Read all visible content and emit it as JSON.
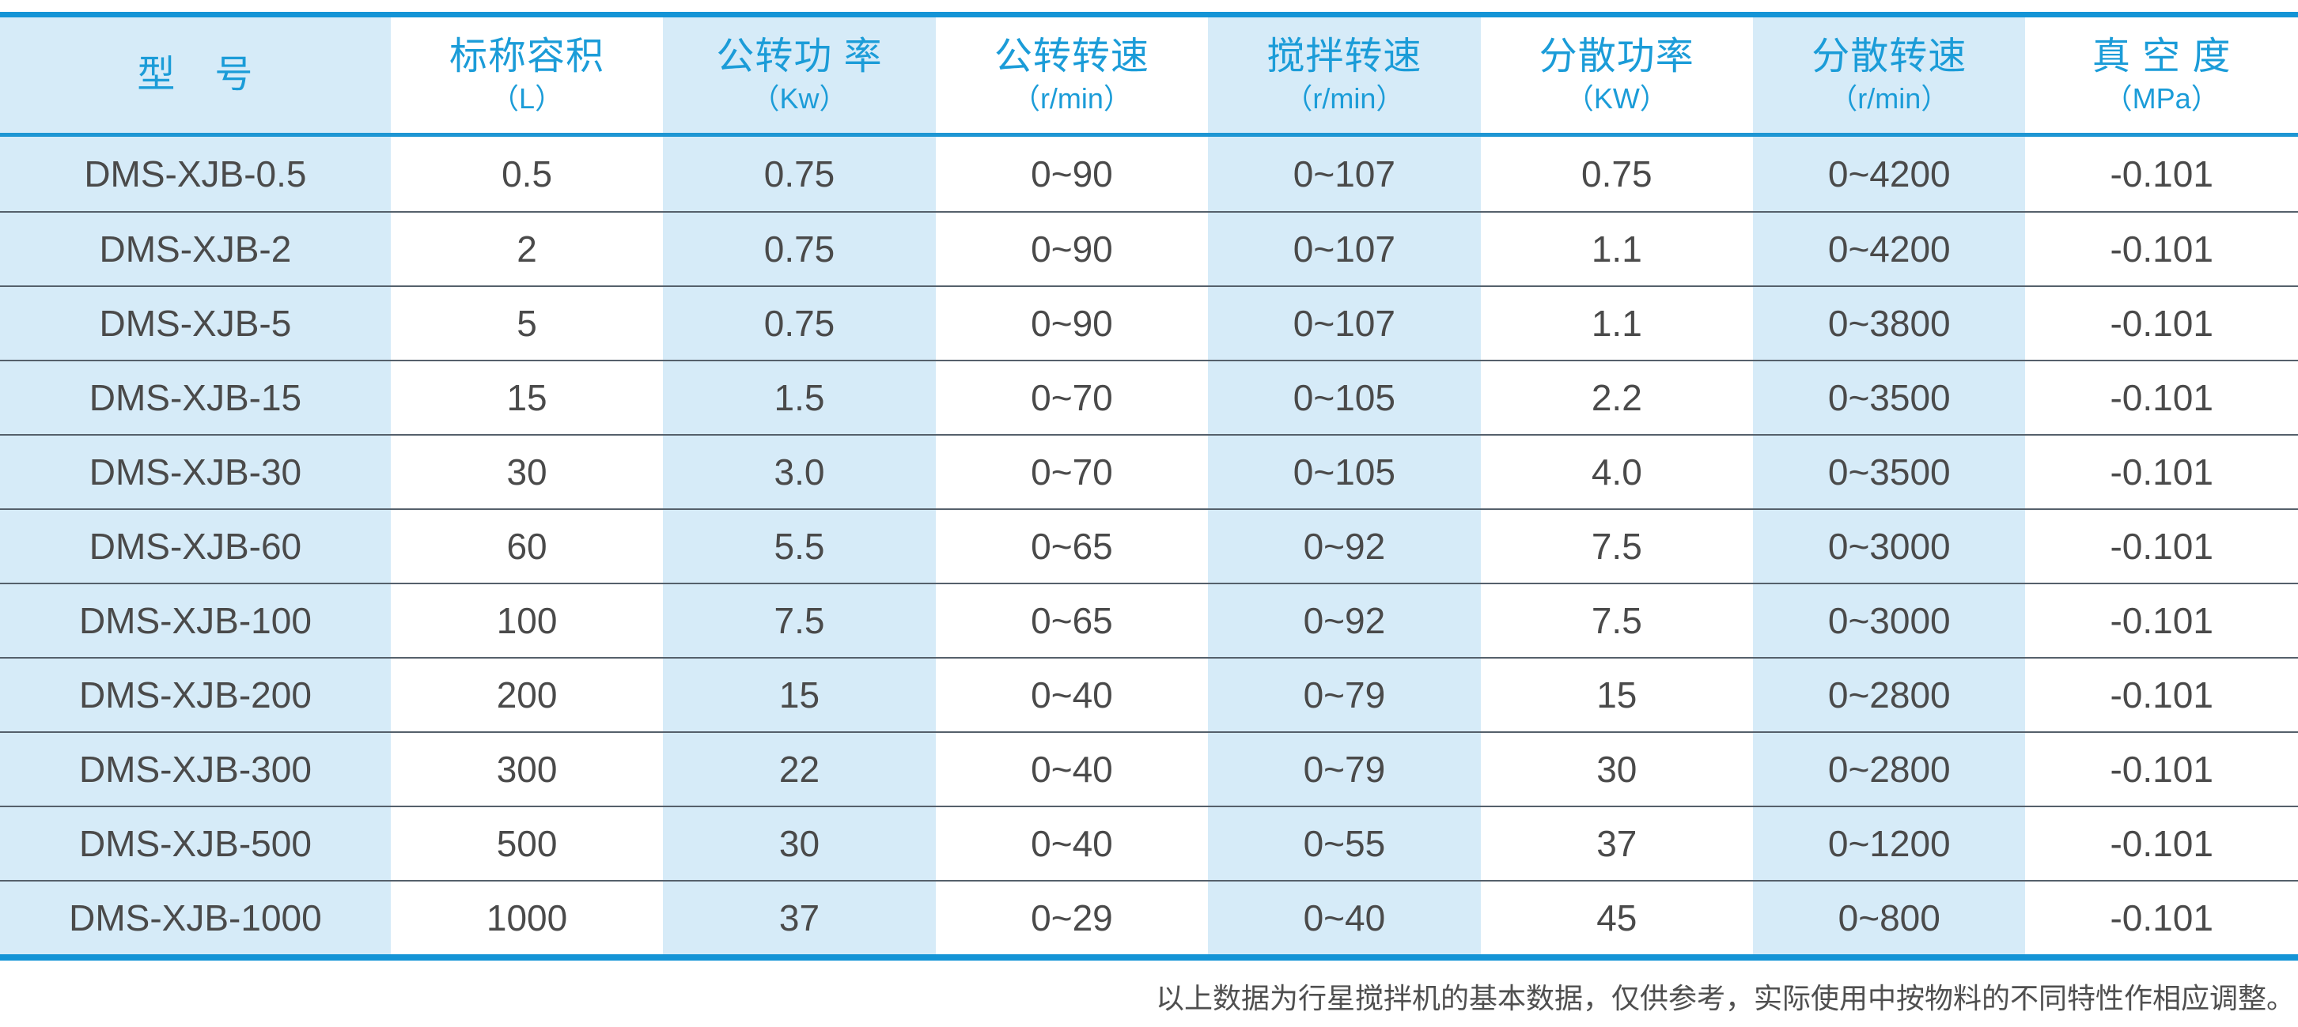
{
  "colors": {
    "accent_blue": "#1494d6",
    "header_text_blue": "#1b9cd8",
    "shaded_column_bg": "#d6ebf8",
    "body_text": "#4a4a4a",
    "row_separator": "#55606b"
  },
  "table": {
    "columns": [
      {
        "label": "型　号",
        "unit": ""
      },
      {
        "label": "标称容积",
        "unit": "（L）"
      },
      {
        "label": "公转功 率",
        "unit": "（Kw）"
      },
      {
        "label": "公转转速",
        "unit": "（r/min）"
      },
      {
        "label": "搅拌转速",
        "unit": "（r/min）"
      },
      {
        "label": "分散功率",
        "unit": "（KW）"
      },
      {
        "label": "分散转速",
        "unit": "（r/min）"
      },
      {
        "label": "真 空 度",
        "unit": "（MPa）"
      }
    ],
    "rows": [
      [
        "DMS-XJB-0.5",
        "0.5",
        "0.75",
        "0~90",
        "0~107",
        "0.75",
        "0~4200",
        "-0.101"
      ],
      [
        "DMS-XJB-2",
        "2",
        "0.75",
        "0~90",
        "0~107",
        "1.1",
        "0~4200",
        "-0.101"
      ],
      [
        "DMS-XJB-5",
        "5",
        "0.75",
        "0~90",
        "0~107",
        "1.1",
        "0~3800",
        "-0.101"
      ],
      [
        "DMS-XJB-15",
        "15",
        "1.5",
        "0~70",
        "0~105",
        "2.2",
        "0~3500",
        "-0.101"
      ],
      [
        "DMS-XJB-30",
        "30",
        "3.0",
        "0~70",
        "0~105",
        "4.0",
        "0~3500",
        "-0.101"
      ],
      [
        "DMS-XJB-60",
        "60",
        "5.5",
        "0~65",
        "0~92",
        "7.5",
        "0~3000",
        "-0.101"
      ],
      [
        "DMS-XJB-100",
        "100",
        "7.5",
        "0~65",
        "0~92",
        "7.5",
        "0~3000",
        "-0.101"
      ],
      [
        "DMS-XJB-200",
        "200",
        "15",
        "0~40",
        "0~79",
        "15",
        "0~2800",
        "-0.101"
      ],
      [
        "DMS-XJB-300",
        "300",
        "22",
        "0~40",
        "0~79",
        "30",
        "0~2800",
        "-0.101"
      ],
      [
        "DMS-XJB-500",
        "500",
        "30",
        "0~40",
        "0~55",
        "37",
        "0~1200",
        "-0.101"
      ],
      [
        "DMS-XJB-1000",
        "1000",
        "37",
        "0~29",
        "0~40",
        "45",
        "0~800",
        "-0.101"
      ]
    ]
  },
  "footnote": "以上数据为行星搅拌机的基本数据，仅供参考，实际使用中按物料的不同特性作相应调整。"
}
